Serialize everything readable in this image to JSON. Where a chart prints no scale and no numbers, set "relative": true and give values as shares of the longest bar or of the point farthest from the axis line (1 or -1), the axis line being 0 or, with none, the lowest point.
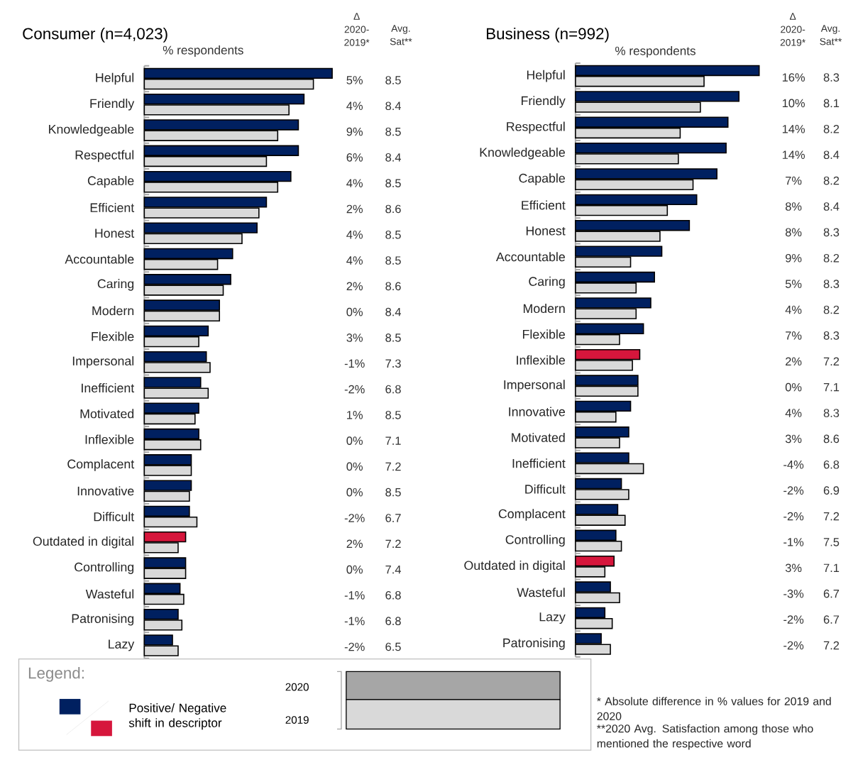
{
  "chart_data": [
    {
      "type": "bar",
      "orientation": "horizontal",
      "relative": true,
      "title": "Consumer (n=4,023)",
      "xlabel": "% respondents",
      "legend": "bottom",
      "legend_title": "Legend:",
      "categories": [
        "Helpful",
        "Friendly",
        "Knowledgeable",
        "Respectful",
        "Capable",
        "Efficient",
        "Honest",
        "Accountable",
        "Caring",
        "Modern",
        "Flexible",
        "Impersonal",
        "Inefficient",
        "Motivated",
        "Inflexible",
        "Complacent",
        "Innovative",
        "Difficult",
        "Outdated in digital",
        "Controlling",
        "Wasteful",
        "Patronising",
        "Lazy"
      ],
      "series": [
        {
          "name": "2020",
          "colors": [
            "#002060",
            "#002060",
            "#002060",
            "#002060",
            "#002060",
            "#002060",
            "#002060",
            "#002060",
            "#002060",
            "#002060",
            "#002060",
            "#002060",
            "#002060",
            "#002060",
            "#002060",
            "#002060",
            "#002060",
            "#002060",
            "#d6163c",
            "#002060",
            "#002060",
            "#002060",
            "#002060"
          ],
          "values": [
            1.0,
            0.85,
            0.82,
            0.82,
            0.78,
            0.65,
            0.6,
            0.47,
            0.46,
            0.4,
            0.34,
            0.33,
            0.3,
            0.29,
            0.29,
            0.25,
            0.25,
            0.24,
            0.22,
            0.22,
            0.19,
            0.18,
            0.15
          ]
        },
        {
          "name": "2019",
          "color": "#d9d9d9",
          "values": [
            0.9,
            0.77,
            0.71,
            0.65,
            0.71,
            0.61,
            0.52,
            0.39,
            0.42,
            0.4,
            0.29,
            0.35,
            0.34,
            0.27,
            0.3,
            0.25,
            0.24,
            0.28,
            0.18,
            0.22,
            0.21,
            0.2,
            0.18
          ]
        }
      ],
      "annotations": [
        "Δ 2020-2019*",
        "Avg. Sat**",
        "5%",
        "8.5",
        "4%",
        "8.4",
        "9%",
        "8.5",
        "6%",
        "8.4",
        "4%",
        "8.5",
        "2%",
        "8.6",
        "4%",
        "8.5",
        "4%",
        "8.5",
        "2%",
        "8.6",
        "0%",
        "8.4",
        "3%",
        "8.5",
        "-1%",
        "7.3",
        "-2%",
        "6.8",
        "1%",
        "8.5",
        "0%",
        "7.1",
        "0%",
        "7.2",
        "0%",
        "8.5",
        "-2%",
        "6.7",
        "2%",
        "7.2",
        "0%",
        "7.4",
        "-1%",
        "6.8",
        "-1%",
        "6.8",
        "-2%",
        "6.5",
        "Positive/ Negative shift in descriptor"
      ]
    },
    {
      "type": "bar",
      "orientation": "horizontal",
      "relative": true,
      "title": "Business  (n=992)",
      "xlabel": "% respondents",
      "categories": [
        "Helpful",
        "Friendly",
        "Respectful",
        "Knowledgeable",
        "Capable",
        "Efficient",
        "Honest",
        "Accountable",
        "Caring",
        "Modern",
        "Flexible",
        "Inflexible",
        "Impersonal",
        "Innovative",
        "Motivated",
        "Inefficient",
        "Difficult",
        "Complacent",
        "Controlling",
        "Outdated in digital",
        "Wasteful",
        "Lazy",
        "Patronising"
      ],
      "series": [
        {
          "colors": [
            "#002060",
            "#002060",
            "#002060",
            "#002060",
            "#002060",
            "#002060",
            "#002060",
            "#002060",
            "#002060",
            "#002060",
            "#002060",
            "#d6163c",
            "#002060",
            "#002060",
            "#002060",
            "#002060",
            "#002060",
            "#002060",
            "#002060",
            "#d6163c",
            "#002060",
            "#002060",
            "#002060"
          ],
          "values": [
            1.0,
            0.89,
            0.83,
            0.82,
            0.77,
            0.66,
            0.62,
            0.47,
            0.43,
            0.41,
            0.37,
            0.35,
            0.34,
            0.3,
            0.29,
            0.29,
            0.25,
            0.23,
            0.22,
            0.21,
            0.19,
            0.16,
            0.14
          ]
        },
        {
          "color": "#d9d9d9",
          "values": [
            0.7,
            0.68,
            0.57,
            0.56,
            0.64,
            0.5,
            0.46,
            0.3,
            0.33,
            0.33,
            0.24,
            0.31,
            0.34,
            0.22,
            0.24,
            0.37,
            0.29,
            0.27,
            0.25,
            0.16,
            0.24,
            0.2,
            0.19
          ]
        }
      ],
      "annotations": [
        "Δ 2020-2019*",
        "Avg. Sat**",
        "16%",
        "8.3",
        "10%",
        "8.1",
        "14%",
        "8.2",
        "14%",
        "8.4",
        "7%",
        "8.2",
        "8%",
        "8.4",
        "8%",
        "8.3",
        "9%",
        "8.2",
        "5%",
        "8.3",
        "4%",
        "8.2",
        "7%",
        "8.3",
        "2%",
        "7.2",
        "0%",
        "7.1",
        "4%",
        "8.3",
        "3%",
        "8.6",
        "-4%",
        "6.8",
        "-2%",
        "6.9",
        "-2%",
        "7.2",
        "-1%",
        "7.5",
        "3%",
        "7.1",
        "-3%",
        "6.7",
        "-2%",
        "6.7",
        "-2%",
        "7.2",
        "* Absolute difference in % values for 2019 and 2020",
        "**2020 Avg. Satisfaction among those who mentioned the respective word"
      ]
    }
  ]
}
